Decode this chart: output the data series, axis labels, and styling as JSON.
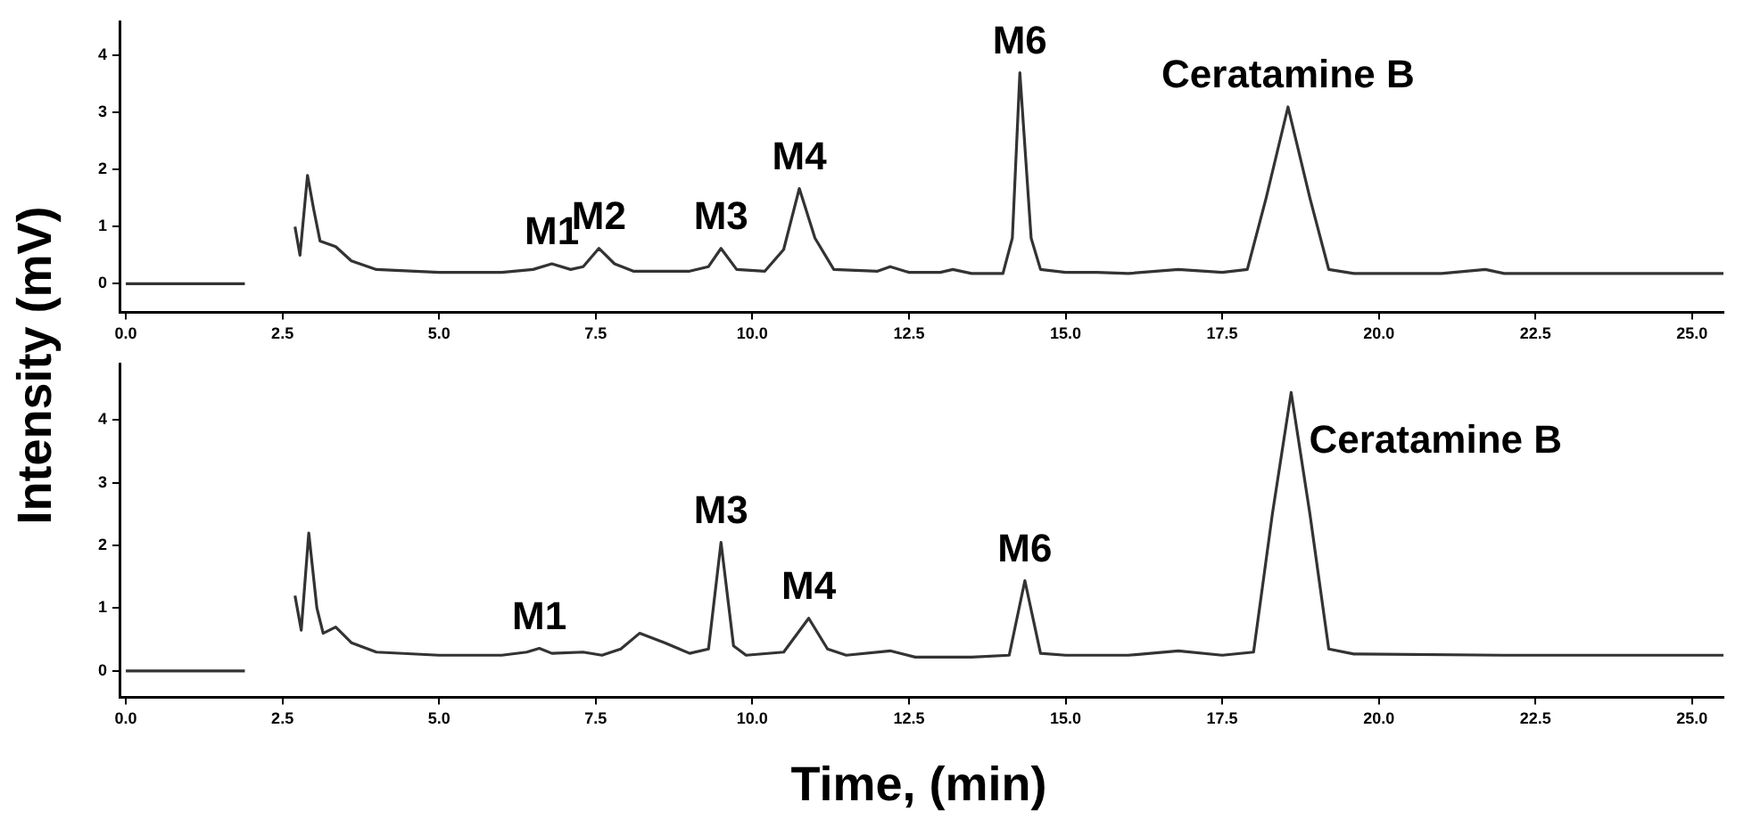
{
  "chart_data": [
    {
      "type": "line",
      "ylabel": "Intensity (mV)",
      "xlim": [
        -0.1,
        25.5
      ],
      "ylim": [
        -0.5,
        4.6
      ],
      "yticks": [
        0,
        1,
        2,
        3,
        4
      ],
      "xticks": [
        {
          "value": 0,
          "label": "0.0"
        },
        {
          "value": 2.5,
          "label": "2.5"
        },
        {
          "value": 5,
          "label": "5.0"
        },
        {
          "value": 7.5,
          "label": "7.5"
        },
        {
          "value": 10,
          "label": "10.0"
        },
        {
          "value": 12.5,
          "label": "12.5"
        },
        {
          "value": 15,
          "label": "15.0"
        },
        {
          "value": 17.5,
          "label": "17.5"
        },
        {
          "value": 20,
          "label": "20.0"
        },
        {
          "value": 22.5,
          "label": "22.5"
        },
        {
          "value": 25,
          "label": "25.0"
        }
      ],
      "grid": false,
      "legend": false,
      "marker": "none",
      "line_style": "solid",
      "series": [
        {
          "color": "#333333",
          "x": [
            0,
            1.9,
            1.93,
            2.6,
            2.7,
            2.78,
            2.9,
            3.0,
            3.1,
            3.35,
            3.6,
            4.0,
            5.0,
            6.0,
            6.5,
            6.8,
            7.1,
            7.3,
            7.55,
            7.8,
            8.1,
            9.0,
            9.3,
            9.5,
            9.75,
            10.2,
            10.5,
            10.75,
            11.0,
            11.3,
            12.0,
            12.2,
            12.5,
            13.0,
            13.2,
            13.5,
            14.0,
            14.15,
            14.27,
            14.45,
            14.6,
            15.0,
            15.5,
            16.0,
            16.8,
            17.5,
            17.9,
            18.2,
            18.55,
            18.9,
            19.2,
            19.6,
            21.0,
            21.7,
            22.0,
            25.5
          ],
          "values": [
            0,
            0,
            null,
            null,
            1.0,
            0.5,
            1.9,
            1.3,
            0.75,
            0.65,
            0.4,
            0.25,
            0.2,
            0.2,
            0.25,
            0.35,
            0.25,
            0.3,
            0.62,
            0.35,
            0.22,
            0.22,
            0.3,
            0.62,
            0.25,
            0.22,
            0.6,
            1.67,
            0.8,
            0.25,
            0.22,
            0.3,
            0.2,
            0.2,
            0.25,
            0.18,
            0.18,
            0.8,
            3.7,
            0.8,
            0.25,
            0.2,
            0.2,
            0.18,
            0.25,
            0.2,
            0.25,
            1.5,
            3.1,
            1.5,
            0.25,
            0.18,
            0.18,
            0.25,
            0.18,
            0.18
          ]
        }
      ],
      "annotations": [
        {
          "text": "M1",
          "x": 6.8,
          "y": 0.35
        },
        {
          "text": "M2",
          "x": 7.55,
          "y": 0.62
        },
        {
          "text": "M3",
          "x": 9.5,
          "y": 0.62
        },
        {
          "text": "M4",
          "x": 10.75,
          "y": 1.67
        },
        {
          "text": "M6",
          "x": 14.27,
          "y": 3.7
        },
        {
          "text": "Ceratamine B",
          "x": 18.55,
          "y": 3.1
        }
      ]
    },
    {
      "type": "line",
      "xlabel": "Time, (min)",
      "xlim": [
        -0.1,
        25.5
      ],
      "ylim": [
        -0.42,
        4.9
      ],
      "yticks": [
        0,
        1,
        2,
        3,
        4
      ],
      "xticks": [
        {
          "value": 0,
          "label": "0.0"
        },
        {
          "value": 2.5,
          "label": "2.5"
        },
        {
          "value": 5,
          "label": "5.0"
        },
        {
          "value": 7.5,
          "label": "7.5"
        },
        {
          "value": 10,
          "label": "10.0"
        },
        {
          "value": 12.5,
          "label": "12.5"
        },
        {
          "value": 15,
          "label": "15.0"
        },
        {
          "value": 17.5,
          "label": "17.5"
        },
        {
          "value": 20,
          "label": "20.0"
        },
        {
          "value": 22.5,
          "label": "22.5"
        },
        {
          "value": 25,
          "label": "25.0"
        }
      ],
      "grid": false,
      "legend": false,
      "marker": "none",
      "line_style": "solid",
      "series": [
        {
          "color": "#333333",
          "x": [
            0,
            1.9,
            1.93,
            2.6,
            2.7,
            2.8,
            2.92,
            3.05,
            3.15,
            3.35,
            3.6,
            4.0,
            5.0,
            6.0,
            6.4,
            6.6,
            6.8,
            7.3,
            7.6,
            7.9,
            8.2,
            8.6,
            9.0,
            9.3,
            9.5,
            9.7,
            9.9,
            10.5,
            10.9,
            11.2,
            11.5,
            12.2,
            12.6,
            13.5,
            14.1,
            14.35,
            14.6,
            15.0,
            16.0,
            16.8,
            17.5,
            18.0,
            18.3,
            18.6,
            18.9,
            19.2,
            19.6,
            22.0,
            25.5
          ],
          "values": [
            0,
            0,
            null,
            null,
            1.2,
            0.65,
            2.2,
            1.0,
            0.6,
            0.7,
            0.45,
            0.3,
            0.25,
            0.25,
            0.3,
            0.36,
            0.28,
            0.3,
            0.25,
            0.35,
            0.6,
            0.45,
            0.28,
            0.35,
            2.05,
            0.4,
            0.25,
            0.3,
            0.84,
            0.35,
            0.25,
            0.32,
            0.22,
            0.22,
            0.25,
            1.44,
            0.28,
            0.25,
            0.25,
            0.32,
            0.25,
            0.3,
            2.5,
            4.44,
            2.5,
            0.35,
            0.27,
            0.25,
            0.25
          ]
        }
      ],
      "annotations": [
        {
          "text": "M1",
          "x": 6.6,
          "y": 0.36
        },
        {
          "text": "M3",
          "x": 9.5,
          "y": 2.05
        },
        {
          "text": "M4",
          "x": 10.9,
          "y": 0.84
        },
        {
          "text": "M6",
          "x": 14.35,
          "y": 1.44
        },
        {
          "text": "Ceratamine B",
          "x": 18.6,
          "y": 4.44
        }
      ]
    }
  ]
}
